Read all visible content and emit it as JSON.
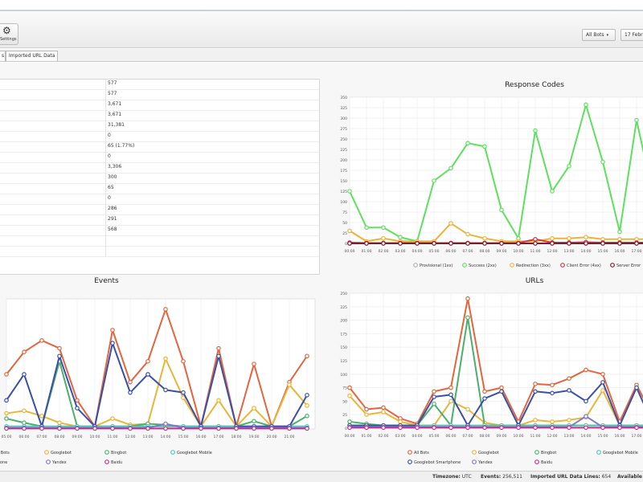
{
  "toolbar": {
    "settings_label": "Settings",
    "bot_filter": "All Bots",
    "date_label": "17 Febr"
  },
  "tabs": [
    {
      "label": "s"
    },
    {
      "label": "Imported URL Data"
    }
  ],
  "summary": {
    "values": [
      "577",
      "577",
      "3,671",
      "3,671",
      "31,381",
      "0",
      "65 (1.77%)",
      "0",
      "3,306",
      "300",
      "65",
      "0",
      "286",
      "291",
      "568",
      "",
      ""
    ]
  },
  "panels": {
    "response_codes": "Response Codes",
    "events": "Events",
    "urls": "URLs"
  },
  "status": {
    "timezone_label": "Timezone:",
    "timezone_value": "UTC",
    "events_label": "Events:",
    "events_value": "256,511",
    "imported_label": "Imported URL Data Lines:",
    "imported_value": "654",
    "available_label": "Available"
  },
  "chart_data": [
    {
      "type": "line",
      "title": "Response Codes",
      "categories": [
        "00:00",
        "01:00",
        "02:00",
        "03:00",
        "04:00",
        "05:00",
        "06:00",
        "07:00",
        "08:00",
        "09:00",
        "10:00",
        "11:00",
        "12:00",
        "13:00",
        "14:00",
        "15:00",
        "16:00",
        "17:00",
        "18:00"
      ],
      "ylim": [
        0,
        350
      ],
      "yticks": [
        0,
        25,
        50,
        75,
        100,
        125,
        150,
        175,
        200,
        225,
        250,
        275,
        300,
        325,
        350
      ],
      "series": [
        {
          "name": "Provisional (1xx)",
          "color": "#b0b0b0",
          "values": [
            0,
            0,
            0,
            0,
            0,
            0,
            0,
            0,
            0,
            0,
            0,
            0,
            0,
            0,
            0,
            0,
            0,
            0,
            0
          ]
        },
        {
          "name": "Success (2xx)",
          "color": "#5ee05e",
          "values": [
            125,
            38,
            38,
            15,
            5,
            150,
            180,
            240,
            232,
            80,
            12,
            270,
            125,
            185,
            332,
            195,
            28,
            295,
            110
          ]
        },
        {
          "name": "Redirection (3xx)",
          "color": "#e8b53a",
          "values": [
            30,
            5,
            12,
            5,
            5,
            5,
            48,
            22,
            12,
            5,
            5,
            5,
            12,
            12,
            15,
            10,
            10,
            10,
            10
          ]
        },
        {
          "name": "Client Error (4xx)",
          "color": "#d9304a",
          "values": [
            2,
            1,
            1,
            1,
            1,
            1,
            1,
            1,
            1,
            1,
            1,
            10,
            2,
            2,
            3,
            2,
            2,
            2,
            2
          ]
        },
        {
          "name": "Server Error",
          "color": "#7a1f2a",
          "values": [
            0,
            0,
            0,
            0,
            0,
            0,
            0,
            0,
            0,
            0,
            0,
            0,
            0,
            0,
            0,
            0,
            0,
            0,
            0
          ]
        }
      ]
    },
    {
      "type": "line",
      "title": "Events",
      "categories": [
        "05:00",
        "06:00",
        "07:00",
        "08:00",
        "09:00",
        "10:00",
        "11:00",
        "12:00",
        "13:00",
        "14:00",
        "15:00",
        "16:00",
        "17:00",
        "18:00",
        "19:00",
        "20:00",
        "21:00",
        "22:00"
      ],
      "tick_labels": [
        "05:00",
        "06:00",
        "07:00",
        "08:00",
        "09:00",
        "10:00",
        "11:00",
        "12:00",
        "13:00",
        "14:00",
        "15:00",
        "16:00",
        "17:00",
        "18:00",
        "19:00",
        "20:00",
        "21:00"
      ],
      "ylim": [
        0,
        250
      ],
      "series": [
        {
          "name": "All Bots",
          "color": "#e3653e",
          "values": [
            105,
            148,
            170,
            155,
            55,
            5,
            190,
            90,
            130,
            230,
            130,
            5,
            155,
            5,
            125,
            5,
            90,
            140
          ]
        },
        {
          "name": "Googlebot",
          "color": "#e8b53a",
          "values": [
            30,
            35,
            25,
            12,
            5,
            5,
            20,
            8,
            10,
            135,
            60,
            5,
            55,
            5,
            40,
            5,
            85,
            45
          ]
        },
        {
          "name": "Bingbot",
          "color": "#4caf6a",
          "values": [
            20,
            12,
            5,
            130,
            5,
            5,
            5,
            5,
            10,
            8,
            5,
            5,
            5,
            5,
            15,
            5,
            5,
            25
          ]
        },
        {
          "name": "Googlebot Mobile",
          "color": "#4fc3b5",
          "values": [
            5,
            5,
            5,
            5,
            5,
            5,
            5,
            5,
            5,
            5,
            5,
            5,
            5,
            5,
            5,
            5,
            5,
            5
          ]
        },
        {
          "name": "Googlebot Smartphone",
          "color": "#3a4fa8",
          "values": [
            55,
            105,
            5,
            140,
            40,
            5,
            165,
            70,
            105,
            75,
            70,
            5,
            140,
            5,
            5,
            5,
            5,
            65
          ]
        },
        {
          "name": "Yandex",
          "color": "#7a7ac8",
          "values": [
            2,
            2,
            2,
            2,
            2,
            2,
            2,
            2,
            2,
            10,
            2,
            2,
            2,
            2,
            2,
            2,
            2,
            2
          ]
        },
        {
          "name": "Baidu",
          "color": "#c0308a",
          "values": [
            1,
            1,
            1,
            1,
            1,
            1,
            1,
            1,
            1,
            1,
            1,
            1,
            1,
            1,
            1,
            1,
            1,
            1
          ]
        }
      ]
    },
    {
      "type": "line",
      "title": "URLs",
      "categories": [
        "00:00",
        "01:00",
        "02:00",
        "03:00",
        "04:00",
        "05:00",
        "06:00",
        "07:00",
        "08:00",
        "09:00",
        "10:00",
        "11:00",
        "12:00",
        "13:00",
        "14:00",
        "15:00",
        "16:00",
        "17:00",
        "18:00"
      ],
      "ylim": [
        0,
        250
      ],
      "yticks": [
        0,
        25,
        50,
        75,
        100,
        125,
        150,
        175,
        200,
        225,
        250
      ],
      "series": [
        {
          "name": "All Bots",
          "color": "#e3653e",
          "values": [
            75,
            35,
            38,
            18,
            8,
            68,
            75,
            240,
            68,
            75,
            12,
            82,
            80,
            92,
            108,
            100,
            12,
            80,
            20
          ]
        },
        {
          "name": "Googlebot",
          "color": "#e8b53a",
          "values": [
            60,
            25,
            30,
            12,
            5,
            5,
            50,
            35,
            10,
            5,
            5,
            15,
            12,
            15,
            20,
            70,
            5,
            5,
            5
          ]
        },
        {
          "name": "Bingbot",
          "color": "#4caf6a",
          "values": [
            12,
            8,
            5,
            5,
            5,
            45,
            5,
            205,
            5,
            5,
            5,
            5,
            5,
            5,
            5,
            5,
            5,
            5,
            5
          ]
        },
        {
          "name": "Googlebot Mobile",
          "color": "#4fc3b5",
          "values": [
            5,
            5,
            5,
            5,
            5,
            5,
            5,
            5,
            5,
            5,
            5,
            5,
            5,
            5,
            5,
            5,
            5,
            5,
            5
          ]
        },
        {
          "name": "Googlebot Smartphone",
          "color": "#3a4fa8",
          "values": [
            5,
            5,
            5,
            5,
            5,
            58,
            62,
            5,
            55,
            68,
            5,
            68,
            65,
            70,
            50,
            85,
            5,
            75,
            5
          ]
        },
        {
          "name": "Yandex",
          "color": "#7a7ac8",
          "values": [
            2,
            2,
            2,
            2,
            2,
            2,
            2,
            2,
            2,
            2,
            2,
            2,
            2,
            2,
            22,
            2,
            2,
            2,
            2
          ]
        },
        {
          "name": "Baidu",
          "color": "#c0308a",
          "values": [
            1,
            1,
            1,
            1,
            1,
            1,
            1,
            1,
            1,
            1,
            1,
            1,
            1,
            1,
            1,
            1,
            1,
            1,
            1
          ]
        }
      ]
    }
  ]
}
